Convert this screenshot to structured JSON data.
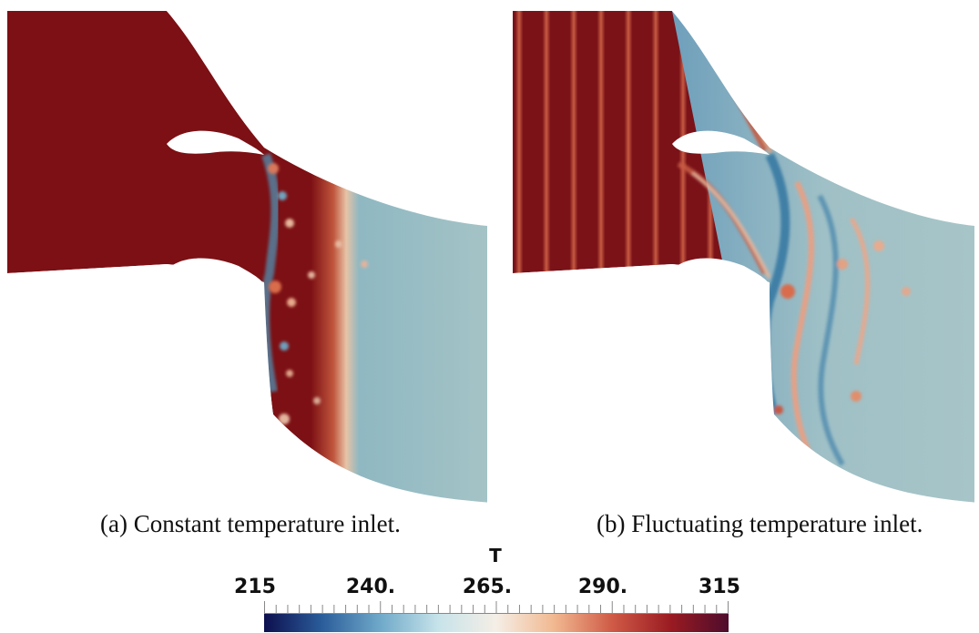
{
  "figure": {
    "panels": [
      {
        "caption": "(a) Constant temperature inlet."
      },
      {
        "caption": "(b) Fluctuating temperature inlet."
      }
    ],
    "colorbar": {
      "title": "T",
      "tick_labels": [
        "215",
        "240.",
        "265.",
        "290.",
        "315"
      ],
      "range": [
        215,
        315
      ],
      "colormap": [
        "#0d0f4e",
        "#2b5d9b",
        "#6fa9c9",
        "#c7e3ea",
        "#f5eee6",
        "#f1b890",
        "#cf5a46",
        "#9a1b22",
        "#4d0c2c"
      ]
    },
    "colors": {
      "hot": "#7c1014",
      "cold": "#9ebfc2",
      "blue_wake": "#4f8fb0"
    }
  }
}
